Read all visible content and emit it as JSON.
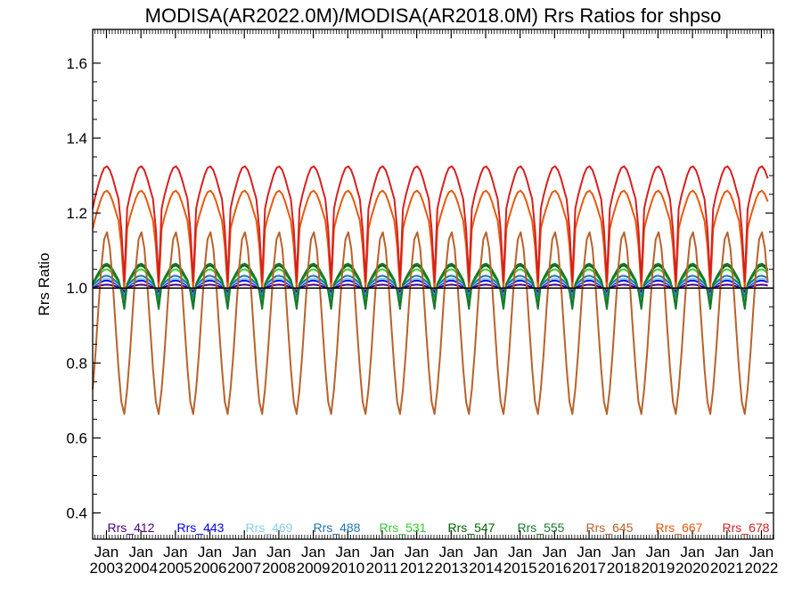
{
  "chart_data": {
    "type": "line",
    "title": "MODISA(AR2022.0M)/MODISA(AR2018.0M)  Rrs Ratios for shpso",
    "xlabel": "",
    "ylabel": "Rrs Ratio",
    "xlim": [
      2002.6,
      2022.35
    ],
    "ylim": [
      0.33,
      1.69
    ],
    "yticks": [
      0.4,
      0.6,
      0.8,
      1.0,
      1.2,
      1.4,
      1.6
    ],
    "ytick_labels": [
      "0.4",
      "0.6",
      "0.8",
      "1.0",
      "1.2",
      "1.4",
      "1.6"
    ],
    "xticks": [
      2003,
      2004,
      2005,
      2006,
      2007,
      2008,
      2009,
      2010,
      2011,
      2012,
      2013,
      2014,
      2015,
      2016,
      2017,
      2018,
      2019,
      2020,
      2021,
      2022
    ],
    "xtick_labels": [
      {
        "month": "Jan",
        "year": "2003"
      },
      {
        "month": "Jan",
        "year": "2004"
      },
      {
        "month": "Jan",
        "year": "2005"
      },
      {
        "month": "Jan",
        "year": "2006"
      },
      {
        "month": "Jan",
        "year": "2007"
      },
      {
        "month": "Jan",
        "year": "2008"
      },
      {
        "month": "Jan",
        "year": "2009"
      },
      {
        "month": "Jan",
        "year": "2010"
      },
      {
        "month": "Jan",
        "year": "2011"
      },
      {
        "month": "Jan",
        "year": "2012"
      },
      {
        "month": "Jan",
        "year": "2013"
      },
      {
        "month": "Jan",
        "year": "2014"
      },
      {
        "month": "Jan",
        "year": "2015"
      },
      {
        "month": "Jan",
        "year": "2016"
      },
      {
        "month": "Jan",
        "year": "2017"
      },
      {
        "month": "Jan",
        "year": "2018"
      },
      {
        "month": "Jan",
        "year": "2019"
      },
      {
        "month": "Jan",
        "year": "2020"
      },
      {
        "month": "Jan",
        "year": "2021"
      },
      {
        "month": "Jan",
        "year": "2022"
      }
    ],
    "reference_line": 1.0,
    "legend_position": "bottom",
    "series": [
      {
        "name": "Rrs_412",
        "color": "#4b0082",
        "base": 1.005,
        "amp": 0.004,
        "min": 0.99
      },
      {
        "name": "Rrs_443",
        "color": "#0000ff",
        "base": 1.012,
        "amp": 0.008,
        "min": 0.985
      },
      {
        "name": "Rrs_469",
        "color": "#87ceeb",
        "base": 1.015,
        "amp": 0.01,
        "min": 0.975
      },
      {
        "name": "Rrs_488",
        "color": "#1f77b4",
        "base": 1.02,
        "amp": 0.013,
        "min": 0.97
      },
      {
        "name": "Rrs_531",
        "color": "#32cd32",
        "base": 1.03,
        "amp": 0.02,
        "min": 0.95
      },
      {
        "name": "Rrs_547",
        "color": "#006400",
        "base": 1.035,
        "amp": 0.025,
        "min": 0.94
      },
      {
        "name": "Rrs_555",
        "color": "#1a7a2e",
        "base": 1.038,
        "amp": 0.027,
        "min": 0.935
      },
      {
        "name": "Rrs_645",
        "color": "#b8622b",
        "base": 0.92,
        "amp": 0.23,
        "min": 0.66
      },
      {
        "name": "Rrs_667",
        "color": "#e8590c",
        "base": 1.21,
        "amp": 0.05,
        "min": 0.975
      },
      {
        "name": "Rrs_678",
        "color": "#d62020",
        "base": 1.27,
        "amp": 0.055,
        "min": 0.99
      }
    ]
  }
}
